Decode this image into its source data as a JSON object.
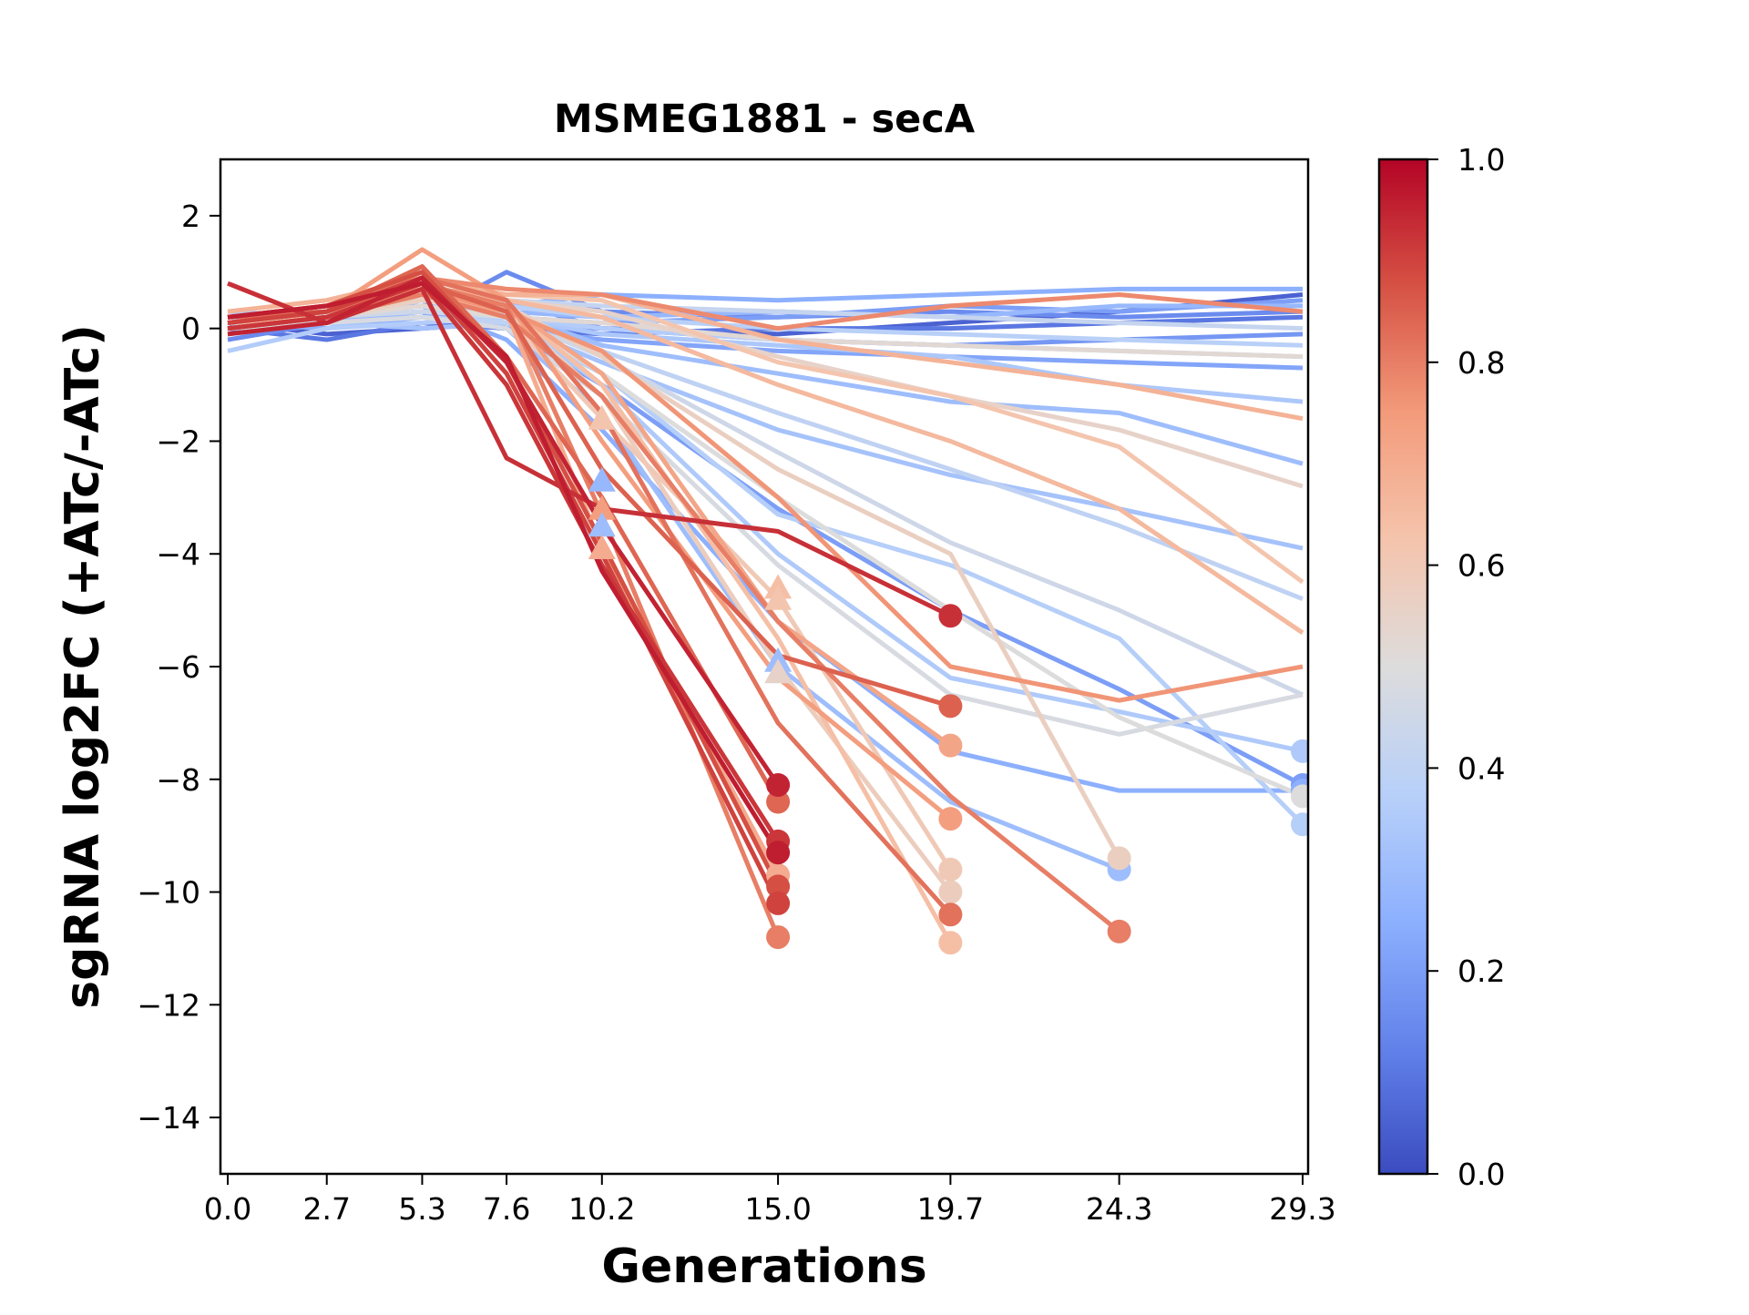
{
  "chart_data": {
    "type": "line",
    "title": "MSMEG1881 - secA",
    "xlabel": "Generations",
    "ylabel": "sgRNA log2FC (+ATc/-ATc)",
    "x_ticks": [
      0.0,
      2.7,
      5.3,
      7.6,
      10.2,
      15.0,
      19.7,
      24.3,
      29.3
    ],
    "x_tick_labels": [
      "0.0",
      "2.7",
      "5.3",
      "7.6",
      "10.2",
      "15.0",
      "19.7",
      "24.3",
      "29.3"
    ],
    "y_ticks": [
      2,
      0,
      -2,
      -4,
      -6,
      -8,
      -10,
      -12,
      -14
    ],
    "y_tick_labels": [
      "2",
      "0",
      "−2",
      "−4",
      "−6",
      "−8",
      "−10",
      "−12",
      "−14"
    ],
    "xlim": [
      -0.2,
      29.4
    ],
    "ylim": [
      -15,
      3
    ],
    "grid": false,
    "colormap": "coolwarm",
    "colorbar": {
      "range": [
        0.0,
        1.0
      ],
      "ticks": [
        0.0,
        0.2,
        0.4,
        0.6,
        0.8,
        1.0
      ],
      "tick_labels": [
        "0.0",
        "0.2",
        "0.4",
        "0.6",
        "0.8",
        "1.0"
      ],
      "stops": [
        "#3b4cc0",
        "#6282ea",
        "#8db0fe",
        "#b8d0f9",
        "#dddcdc",
        "#f5c4ac",
        "#f39b7b",
        "#d65244",
        "#b40426"
      ]
    },
    "series": [
      {
        "c": 0.05,
        "y": [
          0.1,
          -0.1,
          0.0,
          0.1,
          0.0,
          -0.1,
          0.1,
          0.3,
          0.6
        ]
      },
      {
        "c": 0.1,
        "y": [
          0.0,
          -0.2,
          0.1,
          0.0,
          -0.1,
          0.0,
          0.0,
          0.1,
          0.2
        ]
      },
      {
        "c": 0.15,
        "y": [
          -0.2,
          0.1,
          0.2,
          1.0,
          0.3,
          0.2,
          0.3,
          0.2,
          0.3
        ]
      },
      {
        "c": 0.18,
        "y": [
          0.2,
          0.3,
          0.4,
          0.5,
          0.0,
          -0.2,
          -0.3,
          -0.2,
          -0.1
        ]
      },
      {
        "c": 0.2,
        "y": [
          0.1,
          0.2,
          0.3,
          0.2,
          0.1,
          0.2,
          0.4,
          0.3,
          0.5
        ]
      },
      {
        "c": 0.22,
        "y": [
          0.0,
          0.1,
          0.2,
          0.0,
          -0.2,
          -0.4,
          -0.5,
          -0.6,
          -0.7
        ]
      },
      {
        "c": 0.25,
        "y": [
          0.1,
          0.0,
          0.2,
          0.4,
          0.6,
          0.5,
          0.6,
          0.7,
          0.7
        ]
      },
      {
        "c": 0.28,
        "y": [
          -0.1,
          0.1,
          0.3,
          0.3,
          0.2,
          0.3,
          0.2,
          0.4,
          0.4
        ]
      },
      {
        "c": 0.3,
        "y": [
          0.2,
          0.2,
          0.4,
          0.3,
          -0.3,
          -0.8,
          -1.3,
          -1.5,
          -2.4
        ]
      },
      {
        "c": 0.32,
        "y": [
          0.0,
          0.1,
          0.0,
          0.1,
          -0.6,
          -1.8,
          -2.6,
          -3.2,
          -3.9
        ]
      },
      {
        "c": 0.34,
        "y": [
          0.3,
          0.2,
          0.5,
          0.2,
          -0.1,
          -0.3,
          -0.5,
          -1.0,
          -1.3
        ]
      },
      {
        "c": 0.36,
        "y": [
          -0.4,
          0.0,
          0.1,
          0.2,
          0.0,
          -0.2,
          -0.3,
          -0.4,
          -0.5
        ]
      },
      {
        "c": 0.38,
        "y": [
          0.1,
          0.3,
          0.5,
          0.4,
          0.2,
          0.0,
          -0.1,
          -0.2,
          -0.3
        ]
      },
      {
        "c": 0.4,
        "y": [
          0.0,
          0.1,
          0.2,
          0.1,
          -0.4,
          -1.5,
          -2.5,
          -3.5,
          -4.8
        ]
      },
      {
        "c": 0.42,
        "y": [
          0.2,
          0.3,
          0.6,
          0.5,
          0.4,
          0.3,
          0.2,
          0.1,
          0.0
        ]
      },
      {
        "c": 0.2,
        "y": [
          0.1,
          0.2,
          0.5,
          0.0,
          -1.0,
          -3.2,
          -5.0,
          -6.4,
          -8.1
        ]
      },
      {
        "c": 0.25,
        "y": [
          0.0,
          0.2,
          0.4,
          -0.2,
          -1.8,
          -5.2,
          -7.5,
          -8.2,
          -8.2
        ]
      },
      {
        "c": 0.3,
        "y": [
          0.2,
          0.3,
          0.6,
          0.0,
          -1.5,
          -6.0,
          -8.4,
          -9.6,
          null
        ]
      },
      {
        "c": 0.35,
        "y": [
          0.1,
          0.3,
          0.5,
          0.2,
          -1.0,
          -4.0,
          -6.2,
          -6.8,
          -7.5
        ]
      },
      {
        "c": 0.37,
        "y": [
          0.0,
          0.2,
          0.4,
          0.1,
          -0.8,
          -3.3,
          -4.2,
          -5.5,
          -8.8
        ]
      },
      {
        "c": 0.45,
        "y": [
          0.1,
          0.2,
          0.3,
          0.2,
          -0.5,
          -2.2,
          -3.8,
          -5.0,
          -6.5
        ]
      },
      {
        "c": 0.48,
        "y": [
          0.0,
          0.1,
          0.2,
          0.0,
          -1.2,
          -4.2,
          -6.5,
          -7.2,
          -6.5
        ]
      },
      {
        "c": 0.5,
        "y": [
          0.2,
          0.3,
          0.5,
          0.3,
          -0.8,
          -3.0,
          -5.0,
          -6.9,
          -8.3
        ]
      },
      {
        "c": 0.52,
        "y": [
          0.0,
          0.2,
          0.4,
          0.2,
          0.1,
          -0.2,
          -0.3,
          -0.4,
          -0.5
        ]
      },
      {
        "c": 0.55,
        "y": [
          0.1,
          0.3,
          0.6,
          0.5,
          0.3,
          -0.5,
          -1.2,
          -1.8,
          -2.8
        ]
      },
      {
        "c": 0.57,
        "y": [
          0.0,
          0.2,
          0.5,
          0.4,
          -0.5,
          -2.5,
          -4.0,
          -9.4,
          null
        ]
      },
      {
        "c": 0.58,
        "y": [
          0.2,
          0.4,
          0.7,
          0.3,
          -1.2,
          -6.0,
          -10.0,
          null,
          null
        ]
      },
      {
        "c": 0.6,
        "y": [
          0.1,
          0.3,
          0.6,
          0.2,
          -1.6,
          -4.8,
          -9.6,
          null,
          null
        ]
      },
      {
        "c": 0.62,
        "y": [
          0.0,
          0.3,
          0.7,
          0.6,
          0.5,
          -0.6,
          -1.2,
          -2.1,
          -4.5
        ]
      },
      {
        "c": 0.64,
        "y": [
          0.2,
          0.4,
          0.8,
          0.4,
          -1.0,
          -5.5,
          -10.9,
          null,
          null
        ]
      },
      {
        "c": 0.66,
        "y": [
          0.1,
          0.3,
          0.7,
          0.5,
          0.2,
          -1.0,
          -2.0,
          -3.2,
          -5.4
        ]
      },
      {
        "c": 0.68,
        "y": [
          0.3,
          0.5,
          0.9,
          0.6,
          0.6,
          -0.2,
          -0.6,
          -1.0,
          -1.6
        ]
      },
      {
        "c": 0.7,
        "y": [
          0.0,
          0.2,
          0.6,
          0.3,
          -3.9,
          -9.7,
          null,
          null,
          null
        ]
      },
      {
        "c": 0.72,
        "y": [
          0.2,
          0.4,
          0.8,
          0.4,
          -0.8,
          -5.2,
          -7.4,
          null,
          null
        ]
      },
      {
        "c": 0.74,
        "y": [
          0.1,
          0.3,
          1.4,
          0.5,
          -2.0,
          -6.2,
          -8.7,
          null,
          null
        ]
      },
      {
        "c": 0.76,
        "y": [
          0.0,
          0.2,
          0.7,
          0.3,
          -0.4,
          -3.0,
          -6.0,
          -6.6,
          -6.0
        ]
      },
      {
        "c": 0.78,
        "y": [
          0.2,
          0.4,
          0.9,
          0.7,
          0.6,
          0.0,
          0.4,
          0.6,
          0.3
        ]
      },
      {
        "c": 0.8,
        "y": [
          0.1,
          0.3,
          0.8,
          0.4,
          -3.3,
          -10.8,
          null,
          null,
          null
        ]
      },
      {
        "c": 0.8,
        "y": [
          0.0,
          0.2,
          0.6,
          0.2,
          -1.2,
          -5.2,
          -8.3,
          -10.7,
          null
        ]
      },
      {
        "c": 0.82,
        "y": [
          0.2,
          0.3,
          0.9,
          0.5,
          -1.5,
          -7.0,
          -10.4,
          null,
          null
        ]
      },
      {
        "c": 0.84,
        "y": [
          0.1,
          0.3,
          1.1,
          -0.5,
          -3.0,
          -8.4,
          null,
          null,
          null
        ]
      },
      {
        "c": 0.85,
        "y": [
          0.0,
          0.2,
          0.8,
          0.3,
          -2.5,
          -5.8,
          -6.7,
          null,
          null
        ]
      },
      {
        "c": 0.88,
        "y": [
          0.2,
          0.4,
          1.0,
          -0.6,
          -3.8,
          -9.9,
          null,
          null,
          null
        ]
      },
      {
        "c": 0.9,
        "y": [
          0.1,
          0.3,
          0.9,
          -0.8,
          -4.0,
          -10.2,
          null,
          null,
          null
        ]
      },
      {
        "c": 0.92,
        "y": [
          0.0,
          0.2,
          0.8,
          -1.0,
          -4.2,
          -9.1,
          null,
          null,
          null
        ]
      },
      {
        "c": 0.93,
        "y": [
          0.8,
          0.1,
          0.7,
          -2.3,
          -3.2,
          -3.6,
          -5.1,
          null,
          null
        ]
      },
      {
        "c": 0.95,
        "y": [
          -0.1,
          0.1,
          0.9,
          -0.6,
          -3.5,
          -8.1,
          null,
          null,
          null
        ]
      },
      {
        "c": 0.96,
        "y": [
          0.2,
          0.4,
          0.8,
          -0.5,
          -4.3,
          -9.3,
          null,
          null,
          null
        ]
      }
    ],
    "triangle_markers": [
      {
        "x": 10.2,
        "y": -1.6,
        "c": 0.62
      },
      {
        "x": 10.2,
        "y": -2.7,
        "c": 0.28
      },
      {
        "x": 10.2,
        "y": -3.2,
        "c": 0.74
      },
      {
        "x": 10.2,
        "y": -3.5,
        "c": 0.3
      },
      {
        "x": 10.2,
        "y": -3.9,
        "c": 0.7
      },
      {
        "x": 15.0,
        "y": -4.6,
        "c": 0.64
      },
      {
        "x": 15.0,
        "y": -4.8,
        "c": 0.62
      },
      {
        "x": 15.0,
        "y": -5.9,
        "c": 0.3
      },
      {
        "x": 15.0,
        "y": -6.1,
        "c": 0.55
      }
    ]
  }
}
